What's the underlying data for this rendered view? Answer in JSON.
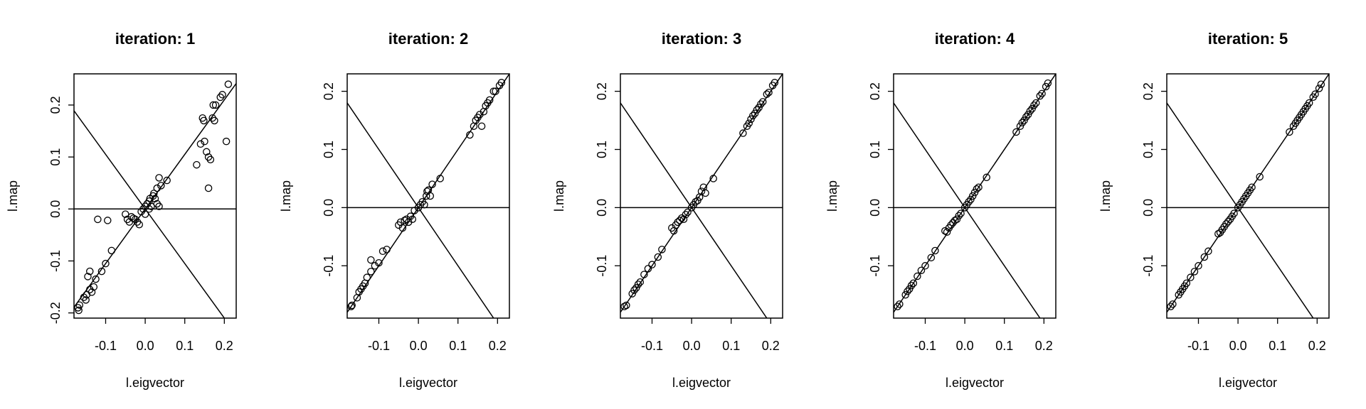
{
  "chart_data": [
    {
      "type": "scatter",
      "title": "iteration: 1",
      "xlabel": "l.eigvector",
      "ylabel": "l.map",
      "xlim": [
        -0.18,
        0.23
      ],
      "ylim": [
        -0.21,
        0.26
      ],
      "xticks": [
        "-0.1",
        "0.0",
        "0.1",
        "0.2"
      ],
      "yticks": [
        "-0.2",
        "-0.1",
        "0.0",
        "0.1",
        "0.2"
      ],
      "xtick_values": [
        -0.1,
        0.0,
        0.1,
        0.2
      ],
      "ytick_values": [
        -0.2,
        -0.1,
        0.0,
        0.1,
        0.2
      ],
      "reference_lines": [
        {
          "kind": "hline",
          "y": 0
        },
        {
          "kind": "abline",
          "intercept": 0,
          "slope": 1.05
        },
        {
          "kind": "abline",
          "intercept": 0,
          "slope": -1.05
        }
      ],
      "points": [
        [
          -0.17,
          -0.19
        ],
        [
          -0.168,
          -0.195
        ],
        [
          -0.166,
          -0.185
        ],
        [
          -0.155,
          -0.17
        ],
        [
          -0.15,
          -0.175
        ],
        [
          -0.148,
          -0.165
        ],
        [
          -0.145,
          -0.13
        ],
        [
          -0.14,
          -0.12
        ],
        [
          -0.14,
          -0.155
        ],
        [
          -0.135,
          -0.16
        ],
        [
          -0.13,
          -0.15
        ],
        [
          -0.125,
          -0.135
        ],
        [
          -0.11,
          -0.12
        ],
        [
          -0.1,
          -0.105
        ],
        [
          -0.085,
          -0.08
        ],
        [
          -0.12,
          -0.02
        ],
        [
          -0.095,
          -0.022
        ],
        [
          -0.05,
          -0.01
        ],
        [
          -0.045,
          -0.02
        ],
        [
          -0.04,
          -0.025
        ],
        [
          -0.035,
          -0.015
        ],
        [
          -0.03,
          -0.018
        ],
        [
          -0.025,
          -0.02
        ],
        [
          -0.02,
          -0.025
        ],
        [
          -0.015,
          -0.03
        ],
        [
          -0.01,
          -0.005
        ],
        [
          -0.005,
          0.0
        ],
        [
          0.0,
          0.005
        ],
        [
          0.0,
          -0.01
        ],
        [
          0.005,
          0.01
        ],
        [
          0.01,
          0.015
        ],
        [
          0.01,
          0.0
        ],
        [
          0.012,
          0.02
        ],
        [
          0.015,
          0.005
        ],
        [
          0.02,
          0.025
        ],
        [
          0.022,
          0.03
        ],
        [
          0.025,
          0.02
        ],
        [
          0.03,
          0.04
        ],
        [
          0.03,
          0.01
        ],
        [
          0.035,
          0.06
        ],
        [
          0.035,
          0.005
        ],
        [
          0.04,
          0.045
        ],
        [
          0.055,
          0.055
        ],
        [
          0.13,
          0.085
        ],
        [
          0.14,
          0.125
        ],
        [
          0.145,
          0.175
        ],
        [
          0.148,
          0.17
        ],
        [
          0.15,
          0.13
        ],
        [
          0.155,
          0.11
        ],
        [
          0.16,
          0.1
        ],
        [
          0.16,
          0.04
        ],
        [
          0.165,
          0.095
        ],
        [
          0.17,
          0.175
        ],
        [
          0.172,
          0.2
        ],
        [
          0.175,
          0.17
        ],
        [
          0.178,
          0.2
        ],
        [
          0.19,
          0.215
        ],
        [
          0.195,
          0.22
        ],
        [
          0.205,
          0.13
        ],
        [
          0.21,
          0.24
        ]
      ]
    },
    {
      "type": "scatter",
      "title": "iteration: 2",
      "xlabel": "l.eigvector",
      "ylabel": "l.map",
      "xlim": [
        -0.18,
        0.23
      ],
      "ylim": [
        -0.19,
        0.23
      ],
      "xticks": [
        "-0.1",
        "0.0",
        "0.1",
        "0.2"
      ],
      "yticks": [
        "-0.1",
        "0.0",
        "0.1",
        "0.2"
      ],
      "xtick_values": [
        -0.1,
        0.0,
        0.1,
        0.2
      ],
      "ytick_values": [
        -0.1,
        0.0,
        0.1,
        0.2
      ],
      "reference_lines": [
        {
          "kind": "hline",
          "y": 0
        },
        {
          "kind": "abline",
          "intercept": 0,
          "slope": 1.0
        },
        {
          "kind": "abline",
          "intercept": 0,
          "slope": -1.0
        }
      ],
      "points": [
        [
          -0.17,
          -0.17
        ],
        [
          -0.168,
          -0.168
        ],
        [
          -0.155,
          -0.155
        ],
        [
          -0.15,
          -0.145
        ],
        [
          -0.145,
          -0.14
        ],
        [
          -0.14,
          -0.135
        ],
        [
          -0.135,
          -0.13
        ],
        [
          -0.13,
          -0.12
        ],
        [
          -0.12,
          -0.11
        ],
        [
          -0.12,
          -0.09
        ],
        [
          -0.11,
          -0.1
        ],
        [
          -0.1,
          -0.095
        ],
        [
          -0.09,
          -0.075
        ],
        [
          -0.08,
          -0.072
        ],
        [
          -0.05,
          -0.03
        ],
        [
          -0.045,
          -0.025
        ],
        [
          -0.04,
          -0.035
        ],
        [
          -0.035,
          -0.022
        ],
        [
          -0.03,
          -0.02
        ],
        [
          -0.025,
          -0.025
        ],
        [
          -0.02,
          -0.015
        ],
        [
          -0.015,
          -0.02
        ],
        [
          -0.01,
          -0.005
        ],
        [
          0.0,
          0.0
        ],
        [
          0.005,
          0.005
        ],
        [
          0.01,
          0.01
        ],
        [
          0.015,
          0.005
        ],
        [
          0.02,
          0.02
        ],
        [
          0.022,
          0.028
        ],
        [
          0.025,
          0.03
        ],
        [
          0.03,
          0.02
        ],
        [
          0.035,
          0.04
        ],
        [
          0.055,
          0.05
        ],
        [
          0.13,
          0.125
        ],
        [
          0.14,
          0.14
        ],
        [
          0.145,
          0.15
        ],
        [
          0.15,
          0.155
        ],
        [
          0.155,
          0.16
        ],
        [
          0.16,
          0.14
        ],
        [
          0.165,
          0.165
        ],
        [
          0.17,
          0.175
        ],
        [
          0.175,
          0.18
        ],
        [
          0.18,
          0.185
        ],
        [
          0.19,
          0.2
        ],
        [
          0.195,
          0.2
        ],
        [
          0.205,
          0.21
        ],
        [
          0.21,
          0.215
        ]
      ]
    },
    {
      "type": "scatter",
      "title": "iteration: 3",
      "xlabel": "l.eigvector",
      "ylabel": "l.map",
      "xlim": [
        -0.18,
        0.23
      ],
      "ylim": [
        -0.19,
        0.23
      ],
      "xticks": [
        "-0.1",
        "0.0",
        "0.1",
        "0.2"
      ],
      "yticks": [
        "-0.1",
        "0.0",
        "0.1",
        "0.2"
      ],
      "xtick_values": [
        -0.1,
        0.0,
        0.1,
        0.2
      ],
      "ytick_values": [
        -0.1,
        0.0,
        0.1,
        0.2
      ],
      "reference_lines": [
        {
          "kind": "hline",
          "y": 0
        },
        {
          "kind": "abline",
          "intercept": 0,
          "slope": 1.0
        },
        {
          "kind": "abline",
          "intercept": 0,
          "slope": -1.0
        }
      ],
      "points": [
        [
          -0.17,
          -0.17
        ],
        [
          -0.165,
          -0.168
        ],
        [
          -0.15,
          -0.148
        ],
        [
          -0.145,
          -0.142
        ],
        [
          -0.14,
          -0.138
        ],
        [
          -0.135,
          -0.132
        ],
        [
          -0.13,
          -0.128
        ],
        [
          -0.12,
          -0.115
        ],
        [
          -0.11,
          -0.105
        ],
        [
          -0.1,
          -0.098
        ],
        [
          -0.085,
          -0.085
        ],
        [
          -0.075,
          -0.072
        ],
        [
          -0.05,
          -0.035
        ],
        [
          -0.045,
          -0.04
        ],
        [
          -0.04,
          -0.03
        ],
        [
          -0.035,
          -0.025
        ],
        [
          -0.03,
          -0.022
        ],
        [
          -0.025,
          -0.018
        ],
        [
          -0.02,
          -0.02
        ],
        [
          -0.015,
          -0.012
        ],
        [
          -0.01,
          -0.008
        ],
        [
          0.0,
          0.0
        ],
        [
          0.005,
          0.005
        ],
        [
          0.01,
          0.01
        ],
        [
          0.015,
          0.012
        ],
        [
          0.02,
          0.018
        ],
        [
          0.025,
          0.028
        ],
        [
          0.03,
          0.035
        ],
        [
          0.035,
          0.025
        ],
        [
          0.055,
          0.05
        ],
        [
          0.13,
          0.128
        ],
        [
          0.14,
          0.14
        ],
        [
          0.145,
          0.145
        ],
        [
          0.15,
          0.152
        ],
        [
          0.155,
          0.158
        ],
        [
          0.16,
          0.162
        ],
        [
          0.165,
          0.168
        ],
        [
          0.17,
          0.172
        ],
        [
          0.175,
          0.178
        ],
        [
          0.18,
          0.182
        ],
        [
          0.19,
          0.195
        ],
        [
          0.195,
          0.198
        ],
        [
          0.205,
          0.21
        ],
        [
          0.21,
          0.215
        ]
      ]
    },
    {
      "type": "scatter",
      "title": "iteration: 4",
      "xlabel": "l.eigvector",
      "ylabel": "l.map",
      "xlim": [
        -0.18,
        0.23
      ],
      "ylim": [
        -0.19,
        0.23
      ],
      "xticks": [
        "-0.1",
        "0.0",
        "0.1",
        "0.2"
      ],
      "yticks": [
        "-0.1",
        "0.0",
        "0.1",
        "0.2"
      ],
      "xtick_values": [
        -0.1,
        0.0,
        0.1,
        0.2
      ],
      "ytick_values": [
        -0.1,
        0.0,
        0.1,
        0.2
      ],
      "reference_lines": [
        {
          "kind": "hline",
          "y": 0
        },
        {
          "kind": "abline",
          "intercept": 0,
          "slope": 1.0
        },
        {
          "kind": "abline",
          "intercept": 0,
          "slope": -1.0
        }
      ],
      "points": [
        [
          -0.17,
          -0.17
        ],
        [
          -0.165,
          -0.166
        ],
        [
          -0.15,
          -0.15
        ],
        [
          -0.145,
          -0.144
        ],
        [
          -0.14,
          -0.14
        ],
        [
          -0.135,
          -0.134
        ],
        [
          -0.13,
          -0.13
        ],
        [
          -0.12,
          -0.118
        ],
        [
          -0.11,
          -0.108
        ],
        [
          -0.1,
          -0.1
        ],
        [
          -0.085,
          -0.086
        ],
        [
          -0.075,
          -0.074
        ],
        [
          -0.05,
          -0.04
        ],
        [
          -0.045,
          -0.042
        ],
        [
          -0.04,
          -0.035
        ],
        [
          -0.035,
          -0.03
        ],
        [
          -0.03,
          -0.026
        ],
        [
          -0.025,
          -0.022
        ],
        [
          -0.02,
          -0.02
        ],
        [
          -0.015,
          -0.014
        ],
        [
          -0.01,
          -0.01
        ],
        [
          0.0,
          0.0
        ],
        [
          0.005,
          0.005
        ],
        [
          0.01,
          0.01
        ],
        [
          0.015,
          0.014
        ],
        [
          0.02,
          0.02
        ],
        [
          0.025,
          0.026
        ],
        [
          0.03,
          0.032
        ],
        [
          0.035,
          0.035
        ],
        [
          0.055,
          0.052
        ],
        [
          0.13,
          0.13
        ],
        [
          0.14,
          0.14
        ],
        [
          0.145,
          0.146
        ],
        [
          0.15,
          0.15
        ],
        [
          0.155,
          0.156
        ],
        [
          0.16,
          0.16
        ],
        [
          0.165,
          0.166
        ],
        [
          0.17,
          0.17
        ],
        [
          0.175,
          0.176
        ],
        [
          0.18,
          0.18
        ],
        [
          0.19,
          0.192
        ],
        [
          0.195,
          0.196
        ],
        [
          0.205,
          0.208
        ],
        [
          0.21,
          0.214
        ]
      ]
    },
    {
      "type": "scatter",
      "title": "iteration: 5",
      "xlabel": "l.eigvector",
      "ylabel": "l.map",
      "xlim": [
        -0.18,
        0.23
      ],
      "ylim": [
        -0.19,
        0.23
      ],
      "xticks": [
        "-0.1",
        "0.0",
        "0.1",
        "0.2"
      ],
      "yticks": [
        "-0.1",
        "0.0",
        "0.1",
        "0.2"
      ],
      "xtick_values": [
        -0.1,
        0.0,
        0.1,
        0.2
      ],
      "ytick_values": [
        -0.1,
        0.0,
        0.1,
        0.2
      ],
      "reference_lines": [
        {
          "kind": "hline",
          "y": 0
        },
        {
          "kind": "abline",
          "intercept": 0,
          "slope": 1.0
        },
        {
          "kind": "abline",
          "intercept": 0,
          "slope": -1.0
        }
      ],
      "points": [
        [
          -0.17,
          -0.17
        ],
        [
          -0.165,
          -0.166
        ],
        [
          -0.15,
          -0.15
        ],
        [
          -0.145,
          -0.145
        ],
        [
          -0.14,
          -0.14
        ],
        [
          -0.135,
          -0.135
        ],
        [
          -0.13,
          -0.13
        ],
        [
          -0.12,
          -0.12
        ],
        [
          -0.11,
          -0.11
        ],
        [
          -0.1,
          -0.1
        ],
        [
          -0.085,
          -0.085
        ],
        [
          -0.075,
          -0.075
        ],
        [
          -0.05,
          -0.045
        ],
        [
          -0.045,
          -0.043
        ],
        [
          -0.04,
          -0.038
        ],
        [
          -0.035,
          -0.033
        ],
        [
          -0.03,
          -0.028
        ],
        [
          -0.025,
          -0.024
        ],
        [
          -0.02,
          -0.02
        ],
        [
          -0.015,
          -0.015
        ],
        [
          -0.01,
          -0.01
        ],
        [
          0.0,
          0.0
        ],
        [
          0.005,
          0.005
        ],
        [
          0.01,
          0.01
        ],
        [
          0.015,
          0.015
        ],
        [
          0.02,
          0.02
        ],
        [
          0.025,
          0.025
        ],
        [
          0.03,
          0.03
        ],
        [
          0.035,
          0.035
        ],
        [
          0.055,
          0.053
        ],
        [
          0.13,
          0.13
        ],
        [
          0.14,
          0.14
        ],
        [
          0.145,
          0.145
        ],
        [
          0.15,
          0.15
        ],
        [
          0.155,
          0.155
        ],
        [
          0.16,
          0.16
        ],
        [
          0.165,
          0.165
        ],
        [
          0.17,
          0.17
        ],
        [
          0.175,
          0.175
        ],
        [
          0.18,
          0.18
        ],
        [
          0.19,
          0.19
        ],
        [
          0.195,
          0.195
        ],
        [
          0.205,
          0.205
        ],
        [
          0.21,
          0.212
        ]
      ]
    }
  ]
}
